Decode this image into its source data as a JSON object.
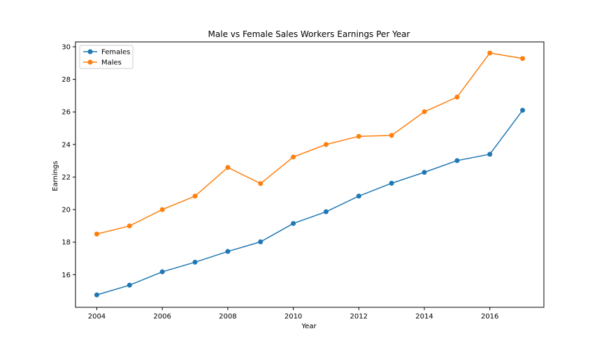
{
  "chart_data": {
    "type": "line",
    "title": "Male vs Female Sales Workers Earnings Per Year",
    "xlabel": "Year",
    "ylabel": "Earnings",
    "x": [
      2004,
      2005,
      2006,
      2007,
      2008,
      2009,
      2010,
      2011,
      2012,
      2013,
      2014,
      2015,
      2016,
      2017
    ],
    "series": [
      {
        "name": "Females",
        "color": "#1f77b4",
        "values": [
          14.76,
          15.36,
          16.18,
          16.77,
          17.43,
          18.02,
          19.15,
          19.87,
          20.83,
          21.62,
          22.29,
          23.01,
          23.4,
          26.1
        ]
      },
      {
        "name": "Males",
        "color": "#ff7f0e",
        "values": [
          18.5,
          19.0,
          20.0,
          20.83,
          22.59,
          21.6,
          23.23,
          24.0,
          24.5,
          24.56,
          26.01,
          26.91,
          29.62,
          29.28
        ]
      }
    ],
    "xlim": [
      2003.35,
      2017.65
    ],
    "ylim": [
      14.0,
      30.3
    ],
    "xticks": [
      2004,
      2006,
      2008,
      2010,
      2012,
      2014,
      2016
    ],
    "yticks": [
      16,
      18,
      20,
      22,
      24,
      26,
      28,
      30
    ],
    "grid": false,
    "legend": "top-left"
  }
}
